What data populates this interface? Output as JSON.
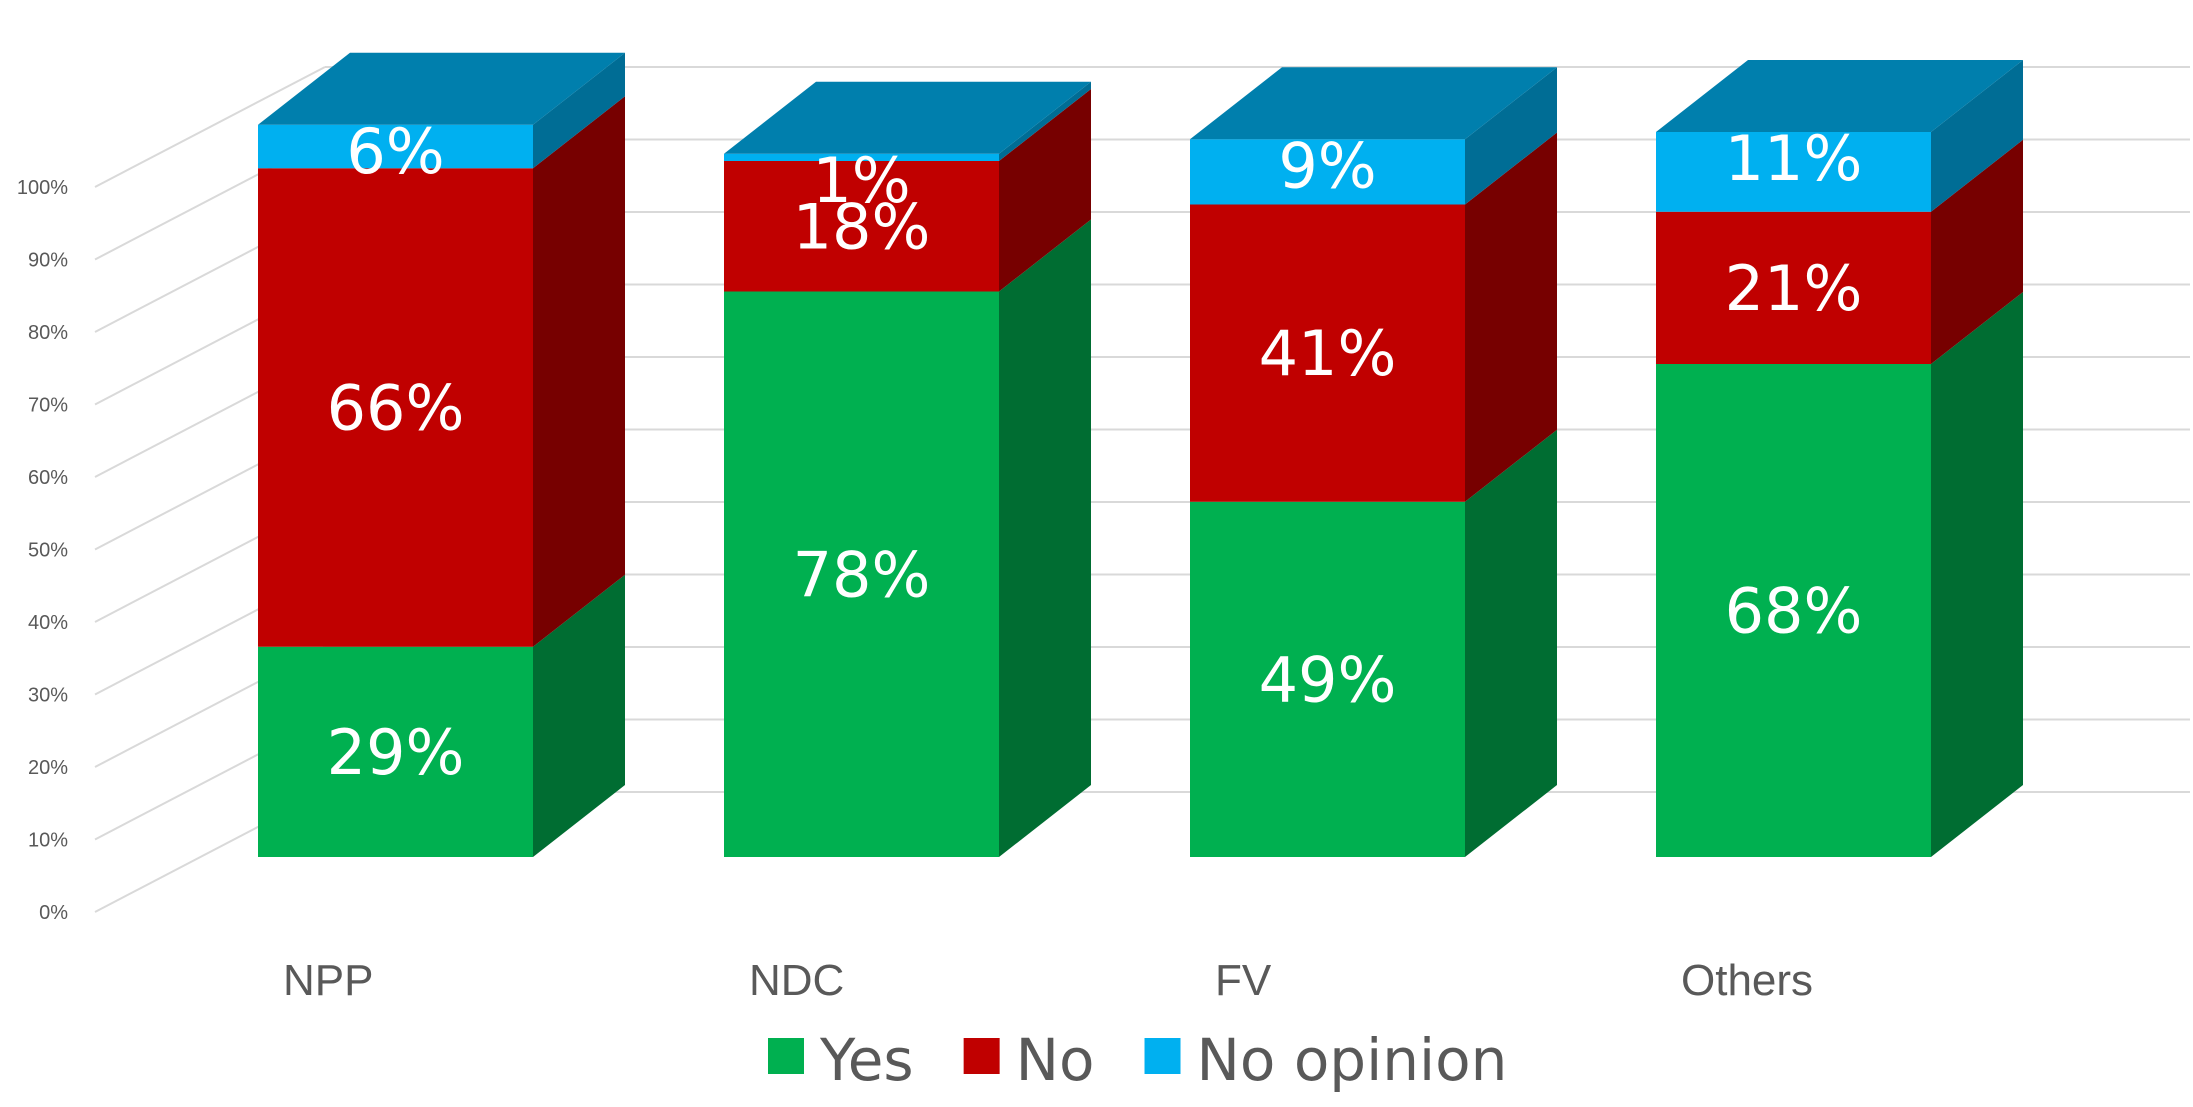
{
  "chart_data": {
    "type": "bar",
    "stacked": true,
    "percent_stacked": true,
    "three_d": true,
    "title": "",
    "xlabel": "",
    "ylabel": "",
    "categories": [
      "NPP",
      "NDC",
      "FV",
      "Others"
    ],
    "series": [
      {
        "name": "Yes",
        "values": [
          29,
          78,
          49,
          68
        ],
        "color": "#00b050"
      },
      {
        "name": "No",
        "values": [
          66,
          18,
          41,
          21
        ],
        "color": "#c00000"
      },
      {
        "name": "No opinion",
        "values": [
          6,
          1,
          9,
          11
        ],
        "color": "#00b0f0"
      }
    ],
    "data_labels": [
      [
        "29%",
        "78%",
        "49%",
        "68%"
      ],
      [
        "66%",
        "18%",
        "41%",
        "21%"
      ],
      [
        "6%",
        "1%",
        "9%",
        "11%"
      ]
    ],
    "ylim": [
      0,
      100
    ],
    "yticks": [
      "0%",
      "10%",
      "20%",
      "30%",
      "40%",
      "50%",
      "60%",
      "70%",
      "80%",
      "90%",
      "100%"
    ],
    "grid": true,
    "legend": "bottom"
  }
}
